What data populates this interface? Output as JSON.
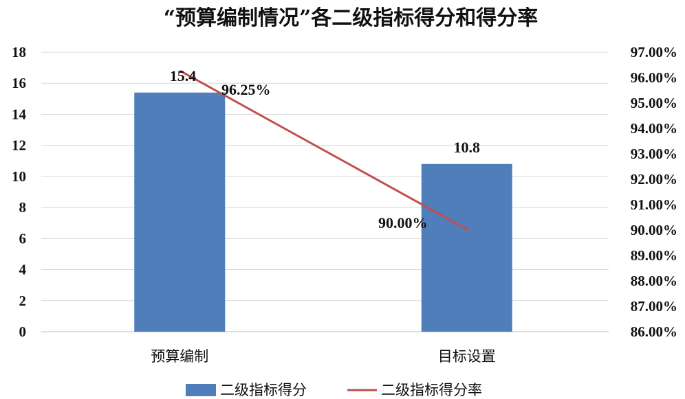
{
  "chart_data": {
    "type": "bar+line",
    "title": "“预算编制情况”各二级指标得分和得分率",
    "categories": [
      "预算编制",
      "目标设置"
    ],
    "series": [
      {
        "name": "二级指标得分",
        "kind": "bar",
        "axis": "left",
        "values": [
          15.4,
          10.8
        ],
        "labels": [
          "15.4",
          "10.8"
        ],
        "color": "#4F7EBB"
      },
      {
        "name": "二级指标得分率",
        "kind": "line",
        "axis": "right",
        "values": [
          96.25,
          90.0
        ],
        "labels": [
          "96.25%",
          "90.00%"
        ],
        "color": "#C0504D"
      }
    ],
    "y_left": {
      "min": 0,
      "max": 18,
      "step": 2,
      "ticks": [
        "0",
        "2",
        "4",
        "6",
        "8",
        "10",
        "12",
        "14",
        "16",
        "18"
      ]
    },
    "y_right": {
      "min": 86,
      "max": 97,
      "step": 1,
      "ticks": [
        "86.00%",
        "87.00%",
        "88.00%",
        "89.00%",
        "90.00%",
        "91.00%",
        "92.00%",
        "93.00%",
        "94.00%",
        "95.00%",
        "96.00%",
        "97.00%"
      ]
    },
    "grid": true,
    "legend_position": "bottom"
  }
}
